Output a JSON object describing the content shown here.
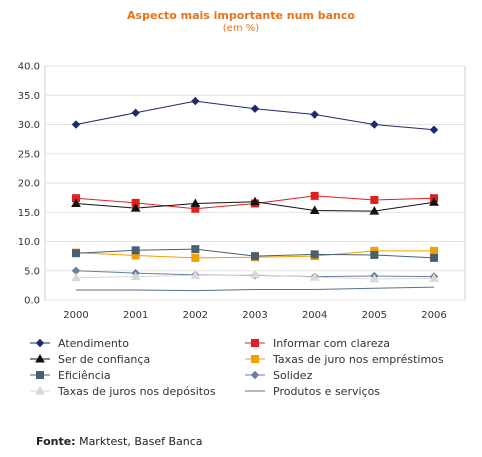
{
  "chart_data": {
    "type": "line",
    "title": "Aspecto mais importante num banco",
    "subtitle": "(em %)",
    "x": [
      "2000",
      "2001",
      "2002",
      "2003",
      "2004",
      "2005",
      "2006"
    ],
    "ylim": [
      0,
      40
    ],
    "yticks": [
      "0.0",
      "5.0",
      "10.0",
      "15.0",
      "20.0",
      "25.0",
      "30.0",
      "35.0",
      "40.0"
    ],
    "grid": true,
    "legend_position": "bottom",
    "series": [
      {
        "name": "Atendimento",
        "color": "#1f2a6b",
        "marker": "diamond",
        "values": [
          30.0,
          32.0,
          34.0,
          32.7,
          31.7,
          30.0,
          29.1
        ]
      },
      {
        "name": "Informar com clareza",
        "color": "#e02020",
        "marker": "square",
        "values": [
          17.4,
          16.6,
          15.6,
          16.5,
          17.8,
          17.1,
          17.4
        ]
      },
      {
        "name": "Ser de confiança",
        "color": "#111111",
        "marker": "triangle",
        "values": [
          16.5,
          15.7,
          16.5,
          16.8,
          15.3,
          15.2,
          16.7
        ]
      },
      {
        "name": "Taxas de juro nos empréstimos",
        "color": "#f0a000",
        "marker": "square",
        "values": [
          8.1,
          7.6,
          7.2,
          7.3,
          7.5,
          8.4,
          8.4
        ]
      },
      {
        "name": "Eficiência",
        "color": "#4a6070",
        "marker": "square",
        "values": [
          8.0,
          8.5,
          8.7,
          7.5,
          7.8,
          7.7,
          7.2
        ]
      },
      {
        "name": "Solidez",
        "color": "#6a7fa0",
        "marker": "diamond",
        "values": [
          5.0,
          4.6,
          4.3,
          4.2,
          4.0,
          4.1,
          4.0
        ]
      },
      {
        "name": "Taxas de juros nos depósitos",
        "color": "#d8d8d8",
        "marker": "triangle",
        "values": [
          3.8,
          4.0,
          4.2,
          4.3,
          3.9,
          3.6,
          3.7
        ]
      },
      {
        "name": "Produtos e serviços",
        "color": "#5a7088",
        "marker": "none",
        "values": [
          1.7,
          1.7,
          1.6,
          1.8,
          1.8,
          2.0,
          2.2
        ]
      }
    ]
  },
  "source": {
    "label": "Fonte:",
    "text": " Marktest, Basef Banca"
  }
}
